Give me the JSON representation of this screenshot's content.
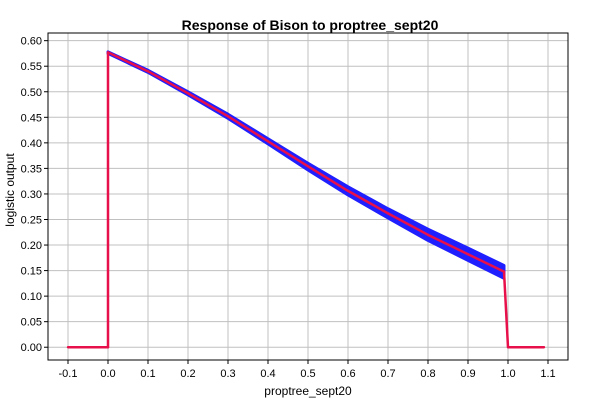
{
  "chart_data": {
    "type": "line",
    "title": "Response of Bison to proptree_sept20",
    "xlabel": "proptree_sept20",
    "ylabel": "logistic output",
    "xlim": [
      -0.15,
      1.15
    ],
    "ylim": [
      -0.025,
      0.615
    ],
    "xticks": [
      "-0.1",
      "0.0",
      "0.1",
      "0.2",
      "0.3",
      "0.4",
      "0.5",
      "0.6",
      "0.7",
      "0.8",
      "0.9",
      "1.0",
      "1.1"
    ],
    "xtick_values": [
      -0.1,
      0.0,
      0.1,
      0.2,
      0.3,
      0.4,
      0.5,
      0.6,
      0.7,
      0.8,
      0.9,
      1.0,
      1.1
    ],
    "yticks": [
      "0.00",
      "0.05",
      "0.10",
      "0.15",
      "0.20",
      "0.25",
      "0.30",
      "0.35",
      "0.40",
      "0.45",
      "0.50",
      "0.55",
      "0.60"
    ],
    "ytick_values": [
      0.0,
      0.05,
      0.1,
      0.15,
      0.2,
      0.25,
      0.3,
      0.35,
      0.4,
      0.45,
      0.5,
      0.55,
      0.6
    ],
    "grid": true,
    "colors": {
      "mean": "#e8104a",
      "band": "#1f1fff",
      "grid": "#c0c0c0"
    },
    "series": [
      {
        "x": [
          -0.1,
          0.0,
          0.0,
          0.1,
          0.2,
          0.3,
          0.4,
          0.5,
          0.6,
          0.7,
          0.8,
          0.9,
          0.99,
          1.0,
          1.09
        ],
        "y": [
          0.0,
          0.0,
          0.577,
          0.54,
          0.497,
          0.452,
          0.403,
          0.354,
          0.306,
          0.262,
          0.22,
          0.182,
          0.148,
          0.0,
          0.0
        ]
      },
      {
        "x": [
          0.0,
          0.1,
          0.2,
          0.3,
          0.4,
          0.5,
          0.6,
          0.7,
          0.8,
          0.9,
          0.99,
          0.99,
          0.9,
          0.8,
          0.7,
          0.6,
          0.5,
          0.4,
          0.3,
          0.2,
          0.1,
          0.0
        ],
        "y": [
          0.578,
          0.542,
          0.5,
          0.456,
          0.408,
          0.36,
          0.314,
          0.271,
          0.231,
          0.194,
          0.16,
          0.135,
          0.17,
          0.209,
          0.253,
          0.298,
          0.347,
          0.398,
          0.448,
          0.494,
          0.538,
          0.575
        ]
      }
    ]
  }
}
